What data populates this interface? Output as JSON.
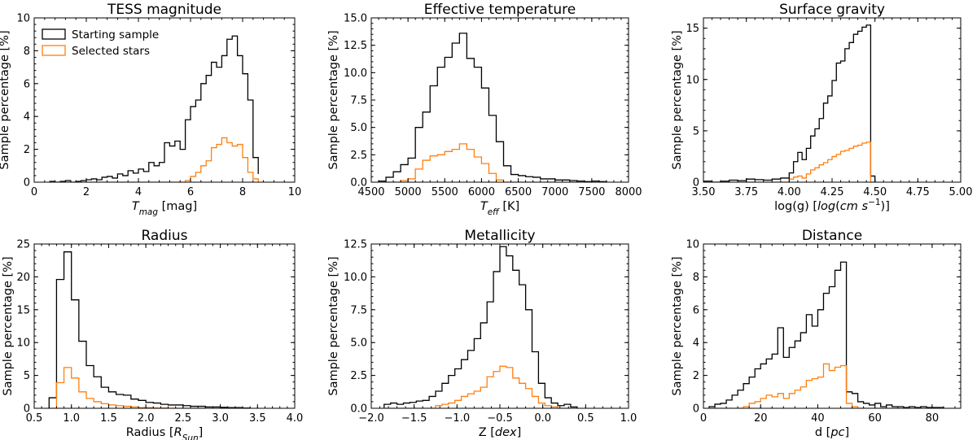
{
  "colors": {
    "starting": "#000000",
    "selected": "#ff7f0e"
  },
  "legend": {
    "starting_label": "Starting sample",
    "selected_label": "Selected stars",
    "location": "upper-left of first panel"
  },
  "chart_data": [
    {
      "type": "histogram",
      "title": "TESS magnitude",
      "xlabel": "T_mag [mag]",
      "ylabel": "Sample percentage [%]",
      "xlim": [
        0,
        10
      ],
      "ylim": [
        0,
        10
      ],
      "xticks": [
        0,
        2,
        4,
        6,
        8,
        10
      ],
      "yticks": [
        0,
        2,
        4,
        6,
        8,
        10
      ],
      "bin_edges": [
        0.6,
        0.8,
        1.0,
        1.2,
        1.4,
        1.6,
        1.8,
        2.0,
        2.2,
        2.4,
        2.6,
        2.8,
        3.0,
        3.2,
        3.4,
        3.6,
        3.8,
        4.0,
        4.2,
        4.4,
        4.6,
        4.8,
        5.0,
        5.2,
        5.4,
        5.6,
        5.8,
        6.0,
        6.2,
        6.4,
        6.6,
        6.8,
        7.0,
        7.2,
        7.4,
        7.6,
        7.8,
        8.0,
        8.2,
        8.4,
        8.6
      ],
      "series": [
        {
          "name": "Starting sample",
          "values": [
            0.05,
            0.0,
            0.05,
            0.1,
            0.0,
            0.05,
            0.1,
            0.15,
            0.2,
            0.15,
            0.3,
            0.35,
            0.25,
            0.5,
            0.4,
            0.7,
            0.55,
            0.8,
            0.65,
            1.2,
            1.0,
            1.2,
            2.4,
            2.2,
            2.5,
            2.0,
            3.8,
            4.6,
            5.0,
            6.0,
            6.5,
            7.3,
            7.0,
            7.7,
            8.7,
            8.9,
            7.7,
            6.6,
            5.0,
            1.5,
            0.5
          ]
        },
        {
          "name": "Selected stars",
          "values": [
            0,
            0,
            0,
            0,
            0,
            0,
            0,
            0,
            0,
            0,
            0,
            0,
            0,
            0,
            0,
            0,
            0,
            0,
            0,
            0,
            0,
            0,
            0,
            0,
            0,
            0,
            0.1,
            0.35,
            0.6,
            1.0,
            1.3,
            2.1,
            2.3,
            2.7,
            2.4,
            2.2,
            2.3,
            1.5,
            0.6,
            0.2,
            0.0
          ]
        }
      ]
    },
    {
      "type": "histogram",
      "title": "Effective temperature",
      "xlabel": "T_eff [K]",
      "ylabel": "Sample percentage [%]",
      "xlim": [
        4500,
        8000
      ],
      "ylim": [
        0,
        15
      ],
      "xticks": [
        4500,
        5000,
        5500,
        6000,
        6500,
        7000,
        7500,
        8000
      ],
      "yticks": [
        0.0,
        2.5,
        5.0,
        7.5,
        10.0,
        12.5,
        15.0
      ],
      "bin_edges": [
        4600,
        4700,
        4800,
        4900,
        5000,
        5100,
        5200,
        5300,
        5400,
        5500,
        5600,
        5700,
        5800,
        5900,
        6000,
        6100,
        6200,
        6300,
        6400,
        6500,
        6600,
        6700,
        6800,
        6900,
        7000,
        7100,
        7200,
        7300,
        7400,
        7500,
        7600,
        7700
      ],
      "series": [
        {
          "name": "Starting sample",
          "values": [
            0.1,
            0.45,
            0.95,
            1.6,
            2.2,
            5.0,
            6.4,
            8.8,
            10.5,
            11.4,
            12.7,
            13.6,
            11.3,
            10.5,
            8.6,
            6.1,
            3.7,
            1.5,
            0.7,
            0.6,
            0.5,
            0.45,
            0.3,
            0.3,
            0.2,
            0.2,
            0.15,
            0.1,
            0.05,
            0.1,
            0.05
          ]
        },
        {
          "name": "Selected stars",
          "values": [
            0,
            0,
            0,
            0.15,
            0.3,
            1.2,
            2.0,
            2.4,
            2.5,
            2.8,
            3.0,
            3.5,
            3.0,
            2.3,
            1.7,
            0.8,
            0.2,
            0,
            0,
            0,
            0,
            0,
            0,
            0,
            0,
            0,
            0,
            0,
            0,
            0,
            0
          ]
        }
      ]
    },
    {
      "type": "histogram",
      "title": "Surface gravity",
      "xlabel": "log(g) [log(cm s^-1)]",
      "ylabel": "Sample percentage [%]",
      "xlim": [
        3.5,
        5.0
      ],
      "ylim": [
        0,
        16
      ],
      "xticks": [
        3.5,
        3.75,
        4.0,
        4.25,
        4.5,
        4.75,
        5.0
      ],
      "yticks": [
        0,
        5,
        10,
        15
      ],
      "bin_edges": [
        3.5,
        3.55,
        3.6,
        3.65,
        3.7,
        3.75,
        3.8,
        3.85,
        3.9,
        3.95,
        4.0,
        4.025,
        4.05,
        4.075,
        4.1,
        4.125,
        4.15,
        4.175,
        4.2,
        4.225,
        4.25,
        4.275,
        4.3,
        4.325,
        4.35,
        4.375,
        4.4,
        4.425,
        4.45,
        4.475,
        4.5,
        4.55
      ],
      "series": [
        {
          "name": "Starting sample",
          "values": [
            0.1,
            0.0,
            0.1,
            0.2,
            0.15,
            0.3,
            0.25,
            0.2,
            0.3,
            0.4,
            0.9,
            2.0,
            2.9,
            2.2,
            3.3,
            4.5,
            5.2,
            6.2,
            7.7,
            8.4,
            9.9,
            11.6,
            11.8,
            13.0,
            13.6,
            14.4,
            14.7,
            15.1,
            15.3,
            0.6
          ]
        },
        {
          "name": "Selected stars",
          "values": [
            0,
            0,
            0,
            0,
            0,
            0,
            0,
            0,
            0,
            0,
            0.3,
            0.5,
            0.6,
            0.4,
            0.8,
            1.2,
            1.4,
            1.7,
            1.9,
            2.2,
            2.5,
            2.7,
            3.0,
            3.1,
            3.3,
            3.5,
            3.6,
            3.8,
            3.9,
            0
          ]
        }
      ]
    },
    {
      "type": "histogram",
      "title": "Radius",
      "xlabel": "Radius [R_Sun]",
      "ylabel": "Sample percentage [%]",
      "xlim": [
        0.5,
        4.0
      ],
      "ylim": [
        0,
        25
      ],
      "xticks": [
        0.5,
        1.0,
        1.5,
        2.0,
        2.5,
        3.0,
        3.5,
        4.0
      ],
      "yticks": [
        0,
        5,
        10,
        15,
        20,
        25
      ],
      "bin_edges": [
        0.7,
        0.8,
        0.9,
        1.0,
        1.1,
        1.2,
        1.3,
        1.4,
        1.5,
        1.6,
        1.7,
        1.8,
        1.9,
        2.0,
        2.1,
        2.2,
        2.3,
        2.4,
        2.5,
        2.6,
        2.7,
        2.8,
        2.9,
        3.0,
        3.1,
        3.2,
        3.3,
        3.4
      ],
      "series": [
        {
          "name": "Starting sample",
          "values": [
            1.6,
            19.6,
            23.8,
            16.5,
            10.2,
            6.5,
            4.8,
            3.2,
            2.5,
            2.1,
            2.0,
            1.4,
            1.2,
            0.9,
            0.8,
            0.6,
            0.5,
            0.5,
            0.4,
            0.3,
            0.3,
            0.2,
            0.2,
            0.15,
            0.1,
            0.1,
            0.05
          ]
        },
        {
          "name": "Selected stars",
          "values": [
            0,
            3.9,
            6.2,
            4.6,
            2.5,
            1.5,
            1.0,
            0.7,
            0.5,
            0.4,
            0.3,
            0.2,
            0.1,
            0.1,
            0.05,
            0.05,
            0,
            0,
            0,
            0,
            0,
            0,
            0,
            0,
            0,
            0,
            0
          ]
        }
      ]
    },
    {
      "type": "histogram",
      "title": "Metallicity",
      "xlabel": "Z [dex]",
      "ylabel": "Sample percentage [%]",
      "xlim": [
        -2.0,
        1.0
      ],
      "ylim": [
        0,
        12.5
      ],
      "xticks": [
        -2.0,
        -1.5,
        -1.0,
        -0.5,
        0.0,
        0.5,
        1.0
      ],
      "yticks": [
        0.0,
        2.5,
        5.0,
        7.5,
        10.0,
        12.5
      ],
      "bin_edges": [
        -1.85,
        -1.775,
        -1.7,
        -1.625,
        -1.55,
        -1.475,
        -1.4,
        -1.325,
        -1.25,
        -1.175,
        -1.1,
        -1.025,
        -0.95,
        -0.875,
        -0.8,
        -0.725,
        -0.65,
        -0.575,
        -0.5,
        -0.425,
        -0.35,
        -0.275,
        -0.2,
        -0.125,
        -0.05,
        0.025,
        0.1,
        0.175,
        0.25,
        0.325,
        0.4
      ],
      "series": [
        {
          "name": "Starting sample",
          "values": [
            0.3,
            0.4,
            0.3,
            0.4,
            0.45,
            0.55,
            0.6,
            0.9,
            1.3,
            1.9,
            2.5,
            3.0,
            3.7,
            4.4,
            5.3,
            6.5,
            8.1,
            10.4,
            12.3,
            11.6,
            10.5,
            9.4,
            7.5,
            4.3,
            1.9,
            0.8,
            0.4,
            0.2,
            0.3,
            0.1
          ]
        },
        {
          "name": "Selected stars",
          "values": [
            0,
            0,
            0,
            0,
            0,
            0,
            0,
            0,
            0.2,
            0.3,
            0.4,
            0.6,
            0.9,
            1.1,
            1.3,
            1.6,
            2.4,
            2.8,
            3.2,
            3.1,
            2.3,
            1.9,
            1.5,
            0.9,
            0.4,
            0.2,
            0.1,
            0,
            0,
            0
          ]
        }
      ]
    },
    {
      "type": "histogram",
      "title": "Distance",
      "xlabel": "d [pc]",
      "ylabel": "Sample percentage [%]",
      "xlim": [
        0,
        90
      ],
      "ylim": [
        0,
        10
      ],
      "xticks": [
        0,
        20,
        40,
        60,
        80
      ],
      "yticks": [
        0,
        2,
        4,
        6,
        8,
        10
      ],
      "bin_edges": [
        2,
        4,
        6,
        8,
        10,
        12,
        14,
        16,
        18,
        20,
        22,
        24,
        26,
        28,
        30,
        32,
        34,
        36,
        38,
        40,
        42,
        44,
        46,
        48,
        50,
        52,
        54,
        56,
        58,
        60,
        62,
        64,
        66,
        68,
        70,
        72,
        74,
        76,
        78,
        80,
        82,
        84
      ],
      "series": [
        {
          "name": "Starting sample",
          "values": [
            0.1,
            0.25,
            0.3,
            0.5,
            0.8,
            1.1,
            1.5,
            1.9,
            2.4,
            2.7,
            3.0,
            3.3,
            4.9,
            3.1,
            3.7,
            4.1,
            4.6,
            5.7,
            5.0,
            6.0,
            7.0,
            7.4,
            8.4,
            8.9,
            1.0,
            0.9,
            0.4,
            0.3,
            0.2,
            0.3,
            0.1,
            0.2,
            0.1,
            0.1,
            0.05,
            0.1,
            0.05,
            0.1,
            0.05,
            0.05,
            0.05
          ]
        },
        {
          "name": "Selected stars",
          "values": [
            0,
            0,
            0,
            0,
            0,
            0,
            0.1,
            0.3,
            0.4,
            0.6,
            0.8,
            0.7,
            0.9,
            0.6,
            0.9,
            1.1,
            1.3,
            1.7,
            1.8,
            1.9,
            2.7,
            2.3,
            2.5,
            2.6,
            0.3,
            0.1,
            0,
            0,
            0,
            0,
            0,
            0,
            0,
            0,
            0,
            0,
            0,
            0,
            0,
            0,
            0
          ]
        }
      ]
    }
  ]
}
